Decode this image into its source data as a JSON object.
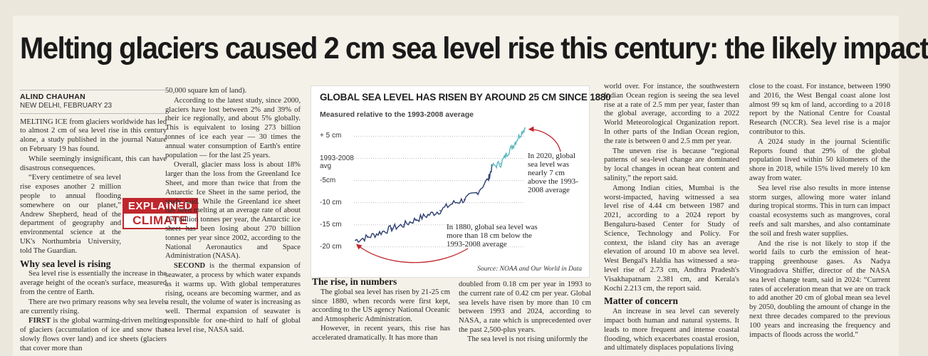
{
  "headline": "Melting glaciers caused 2 cm sea level rise this century: the likely impact",
  "byline": "ALIND CHAUHAN",
  "dateline": "NEW DELHI, FEBRUARY 23",
  "badge": {
    "line1": "EXPLAINED",
    "line2": "CLIMATE"
  },
  "col1": {
    "p1": "MELTING ICE from glaciers worldwide has led to almost 2 cm of sea level rise in this century alone, a study published in the journal Nature on February 19 has found.",
    "p2": "While seemingly insignificant, this can have disastrous consequences.",
    "p3": "“Every centimetre of sea level rise exposes another 2 million people to annual flooding somewhere on our planet,” Andrew Shepherd, head of the department of geography and environmental science at the UK's Northumbria University, told The Guardian.",
    "subhead": "Why sea level is rising",
    "p4": "Sea level rise is essentially the increase in the average height of the ocean's surface, measured from the centre of Earth.",
    "p5": "There are two primary reasons why sea levels are currently rising.",
    "p6_lead": "FIRST",
    "p6": " is the global warming-driven melting of glaciers (accumulation of ice and snow that slowly flows over land) and ice sheets (glaciers that cover more than"
  },
  "col2": {
    "p1": "50,000 square km of land).",
    "p2": "According to the latest study, since 2000, glaciers have lost between 2% and 39% of their ice regionally, and about 5% globally. This is equivalent to losing 273 billion tonnes of ice each year — 30 times the annual water consumption of Earth's entire population — for the last 25 years.",
    "p3": "Overall, glacier mass loss is about 18% larger than the loss from the Greenland Ice Sheet, and more than twice that from the Antarctic Ice Sheet in the same period, the study said. While the Greenland ice sheet has been melting at an average rate of about 150 billion tonnes per year, the Antarctic ice sheet has been losing about 270 billion tonnes per year since 2002, according to the National Aeronautics and Space Administration (NASA).",
    "p4_lead": "SECOND",
    "p4": " is the thermal expansion of seawater, a process by which water expands as it warms up. With global temperatures rising, oceans are becoming warmer, and as a result, the volume of water is increasing as well. Thermal expansion of seawater is responsible for one-third to half of global sea level rise, NASA said."
  },
  "chart": {
    "title": "GLOBAL SEA LEVEL HAS RISEN BY AROUND 25 CM SINCE 1880",
    "subtitle": "Measured relative to the 1993-2008 average",
    "yticks": [
      "+ 5 cm",
      "1993-2008 avg",
      "-5cm",
      "-10 cm",
      "-15 cm",
      "-20 cm"
    ],
    "ann_2020": "In 2020, global sea level was nearly 7 cm above the 1993-2008 average",
    "ann_1880": "In 1880, global sea level was more than 18 cm below the 1993-2008 average",
    "source": "Source: NOAA and Our World in Data",
    "line_color": "#2c3e70",
    "recent_color": "#5fb8c0",
    "arrow_color": "#c0272d"
  },
  "chart_data": {
    "type": "line",
    "title": "GLOBAL SEA LEVEL HAS RISEN BY AROUND 25 CM SINCE 1880",
    "subtitle": "Measured relative to the 1993-2008 average",
    "ylabel": "",
    "xlabel": "",
    "ylim": [
      -21,
      7
    ],
    "xlim": [
      1880,
      2020
    ],
    "x": [
      1880,
      1890,
      1900,
      1910,
      1920,
      1930,
      1940,
      1950,
      1960,
      1970,
      1980,
      1990,
      1993,
      2000,
      2005,
      2010,
      2015,
      2020
    ],
    "series": [
      {
        "values": [
          -18.5,
          -17.8,
          -16.8,
          -15.8,
          -15.0,
          -13.8,
          -12.8,
          -11.8,
          -10.2,
          -9.3,
          -7.8,
          -4.6,
          -1.8,
          -1.2,
          1.0,
          2.8,
          5.0,
          6.9
        ]
      }
    ]
  },
  "rise": {
    "subhead": "The rise, in numbers",
    "p1": "The global sea level has risen by 21-25 cm since 1880, when records were first kept, according to the US agency National Oceanic and Atmospheric Administration.",
    "p2": "However, in recent years, this rise has accelerated dramatically. It has more than",
    "p3": "doubled from 0.18 cm per year in 1993 to the current rate of 0.42 cm per year. Global sea levels have risen by more than 10 cm between 1993 and 2024, according to NASA, a rate which is unprecedented over the past 2,500-plus years.",
    "p4": "The sea level is not rising uniformly the"
  },
  "col5": {
    "p1": "world over. For instance, the southwestern Indian Ocean region is seeing the sea level rise at a rate of 2.5 mm per year, faster than the global average, according to a 2022 World Meteorological Organization report. In other parts of the Indian Ocean region, the rate is between 0 and 2.5 mm per year.",
    "p2": "The uneven rise is because “regional patterns of sea-level change are dominated by local changes in ocean heat content and salinity,” the report said.",
    "p3": "Among Indian cities, Mumbai is the worst-impacted, having witnessed a sea level rise of 4.44 cm between 1987 and 2021, according to a 2024 report by Bengaluru-based Center for Study of Science, Technology and Policy. For context, the island city has an average elevation of around 10 m above sea level. West Bengal's Haldia has witnessed a sea-level rise of 2.73 cm, Andhra Pradesh's Visakhapatnam 2.381 cm, and Kerala's Kochi 2.213 cm, the report said.",
    "subhead": "Matter of concern",
    "p4": "An increase in sea level can severely impact both human and natural systems. It leads to more frequent and intense coastal flooding, which exacerbates coastal erosion, and ultimately displaces populations living"
  },
  "col6": {
    "p1": "close to the coast. For instance, between 1990 and 2016, the West Bengal coast alone lost almost 99 sq km of land, according to a 2018 report by the National Centre for Coastal Research (NCCR). Sea level rise is a major contributor to this.",
    "p2": "A 2024 study in the journal Scientific Reports found that 29% of the global population lived within 50 kilometers of the shore in 2018, while 15% lived merely 10 km away from water.",
    "p3": "Sea level rise also results in more intense storm surges, allowing more water inland during tropical storms. This in turn can impact coastal ecosystems such as mangroves, coral reefs and salt marshes, and also contaminate the soil and fresh water supplies.",
    "p4": "And the rise is not likely to stop if the world fails to curb the emission of heat-trapping greenhouse gases. As Nadya Vinogradova Shiffer, director of the NASA sea level change team, said in 2024: “Current rates of acceleration mean that we are on track to add another 20 cm of global mean sea level by 2050, doubling the amount of change in the next three decades compared to the previous 100 years and increasing the frequency and impacts of floods across the world.”"
  }
}
